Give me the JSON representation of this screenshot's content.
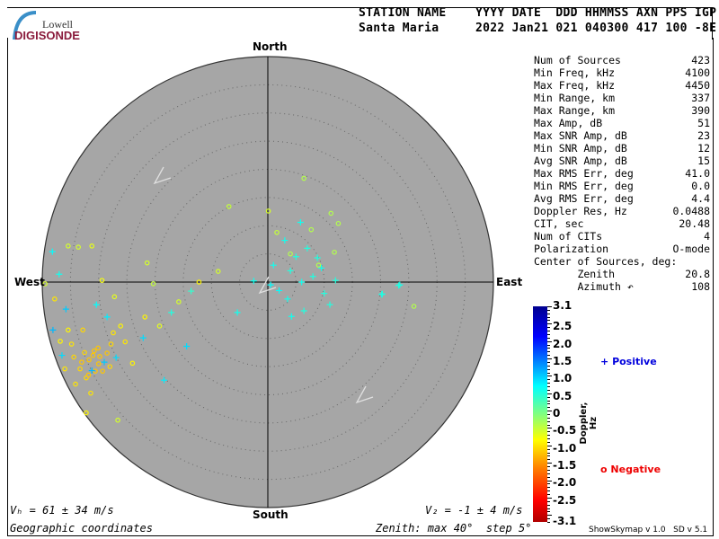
{
  "logo": {
    "line1": "Lowell",
    "line2": "DIGISONDE"
  },
  "header": {
    "labels": "STATION NAME    YYYY DATE  DDD HHMMSS AXN PPS IGP",
    "values": "Santa Maria     2022 Jan21 021 040300 417 100 -8E"
  },
  "stats": [
    {
      "label": "Num of Sources",
      "value": "423"
    },
    {
      "label": "Min Freq, kHz",
      "value": "4100"
    },
    {
      "label": "Max Freq, kHz",
      "value": "4450"
    },
    {
      "label": "Min Range, km",
      "value": "337"
    },
    {
      "label": "Max Range, km",
      "value": "390"
    },
    {
      "label": "Max Amp, dB",
      "value": "51"
    },
    {
      "label": "Max SNR Amp, dB",
      "value": "23"
    },
    {
      "label": "Min SNR Amp, dB",
      "value": "12"
    },
    {
      "label": "Avg SNR Amp, dB",
      "value": "15"
    },
    {
      "label": "Max RMS Err, deg",
      "value": "41.0"
    },
    {
      "label": "Min RMS Err, deg",
      "value": "0.0"
    },
    {
      "label": "Avg RMS Err, deg",
      "value": "4.4"
    },
    {
      "label": "Doppler Res, Hz",
      "value": "0.0488"
    },
    {
      "label": "CIT, sec",
      "value": "20.48"
    },
    {
      "label": "Num of CITs",
      "value": "4"
    },
    {
      "label": "Polarization",
      "value": "O-mode"
    },
    {
      "label": "Center of Sources, deg:",
      "value": ""
    },
    {
      "label": "       Zenith",
      "value": "20.8"
    },
    {
      "label": "       Azimuth ↶",
      "value": "108"
    }
  ],
  "footer": {
    "vh": "Vₕ = 61 ± 34 m/s",
    "vz": "V₂ = -1 ± 4 m/s",
    "coords": "Geographic coordinates",
    "zenith": "Zenith: max 40°  step 5°",
    "version": "ShowSkymap v 1.0   SD v 5.1"
  },
  "legend": {
    "positive": "Positive",
    "negative": "Negative",
    "positive_color": "#0000dd",
    "negative_color": "#ee0000"
  },
  "chart_data": {
    "type": "scatter",
    "projection": "polar sky map",
    "compass": {
      "north": "North",
      "south": "South",
      "east": "East",
      "west": "West"
    },
    "zenith_max_deg": 40,
    "zenith_step_deg": 5,
    "plot_background": "#a6a6a6",
    "colorbar": {
      "label": "Doppler, Hz",
      "range": [
        -3.1,
        3.1
      ],
      "ticks": [
        "3.1",
        "2.5",
        "2.0",
        "1.5",
        "1.0",
        "0.5",
        "0",
        "-0.5",
        "-1.0",
        "-1.5",
        "-2.0",
        "-2.5",
        "-3.1"
      ],
      "tick_values": [
        3.1,
        2.5,
        2.0,
        1.5,
        1.0,
        0.5,
        0,
        -0.5,
        -1.0,
        -1.5,
        -2.0,
        -2.5,
        -3.1
      ],
      "colormap": "jet (red negative to blue positive)"
    },
    "points_format": [
      "east_deg",
      "north_deg",
      "doppler_hz"
    ],
    "positive": [
      [
        3.0,
        7.4,
        0.7
      ],
      [
        5.8,
        10.6,
        0.7
      ],
      [
        8.8,
        4.3,
        0.6
      ],
      [
        23.4,
        -0.5,
        0.7
      ],
      [
        20.2,
        -2.2,
        0.7
      ],
      [
        4.2,
        -6.1,
        0.7
      ],
      [
        6.4,
        -5.1,
        0.6
      ],
      [
        -5.4,
        -5.4,
        0.7
      ],
      [
        -13.6,
        -1.6,
        0.5
      ],
      [
        -17.1,
        -5.4,
        0.6
      ],
      [
        -18.4,
        -17.4,
        0.9
      ],
      [
        -14.4,
        -11.4,
        1.0
      ],
      [
        -22.1,
        -9.9,
        1.0
      ],
      [
        -38.2,
        5.4,
        0.8
      ],
      [
        -37.0,
        1.4,
        0.7
      ],
      [
        -35.8,
        -4.8,
        1.1
      ],
      [
        20.3,
        -2.1,
        0.6
      ],
      [
        23.2,
        -0.6,
        0.6
      ],
      [
        1.0,
        3.0,
        0.7
      ],
      [
        4.0,
        2.0,
        0.6
      ],
      [
        6.0,
        0.0,
        0.7
      ],
      [
        2.0,
        -1.5,
        0.8
      ],
      [
        8.0,
        1.0,
        0.6
      ],
      [
        3.5,
        -3.0,
        0.7
      ],
      [
        10.0,
        -2.0,
        0.6
      ],
      [
        7.0,
        6.0,
        0.6
      ],
      [
        9.5,
        2.5,
        0.7
      ],
      [
        0.5,
        -0.5,
        0.8
      ],
      [
        5.0,
        4.5,
        0.6
      ],
      [
        11.0,
        -4.0,
        0.6
      ],
      [
        -2.5,
        0.2,
        0.7
      ],
      [
        12.0,
        0.3,
        0.6
      ],
      [
        -29.0,
        -14.2,
        1.1
      ],
      [
        -31.2,
        -15.7,
        1.2
      ],
      [
        -26.9,
        -13.4,
        1.0
      ],
      [
        -38.1,
        -8.5,
        1.2
      ],
      [
        -36.5,
        -13.0,
        1.0
      ],
      [
        -30.4,
        -4.0,
        0.8
      ],
      [
        -28.5,
        -6.2,
        0.9
      ]
    ],
    "negative": [
      [
        6.4,
        18.4,
        -0.3
      ],
      [
        -6.9,
        13.4,
        -0.4
      ],
      [
        0.1,
        12.6,
        -0.5
      ],
      [
        11.2,
        12.2,
        -0.3
      ],
      [
        12.5,
        10.4,
        -0.3
      ],
      [
        1.6,
        8.8,
        -0.4
      ],
      [
        7.7,
        9.3,
        -0.3
      ],
      [
        11.8,
        5.3,
        -0.3
      ],
      [
        -8.8,
        1.9,
        -0.5
      ],
      [
        -12.2,
        0.0,
        -0.8
      ],
      [
        -20.3,
        -0.3,
        -0.4
      ],
      [
        -21.4,
        3.4,
        -0.5
      ],
      [
        -27.2,
        -2.6,
        -0.6
      ],
      [
        -29.4,
        0.3,
        -0.7
      ],
      [
        -35.4,
        6.4,
        -0.5
      ],
      [
        -33.6,
        6.2,
        -0.5
      ],
      [
        -31.2,
        6.4,
        -0.6
      ],
      [
        -39.5,
        -0.3,
        -0.5
      ],
      [
        -21.8,
        -6.2,
        -0.8
      ],
      [
        -15.8,
        -3.5,
        -0.5
      ],
      [
        -19.2,
        -7.8,
        -0.6
      ],
      [
        -24.0,
        -14.4,
        -0.8
      ],
      [
        25.9,
        -4.3,
        -0.3
      ],
      [
        4.0,
        5.0,
        -0.3
      ],
      [
        9.0,
        3.0,
        -0.3
      ],
      [
        -31.7,
        -13.8,
        -1.1
      ],
      [
        -30.1,
        -11.7,
        -1.1
      ],
      [
        -33.3,
        -15.4,
        -1.0
      ],
      [
        -28.5,
        -12.6,
        -1.1
      ],
      [
        -34.4,
        -13.3,
        -1.0
      ],
      [
        -32.2,
        -17.0,
        -1.0
      ],
      [
        -30.6,
        -15.8,
        -1.1
      ],
      [
        -27.4,
        -9.0,
        -0.9
      ],
      [
        -26.1,
        -7.8,
        -0.8
      ],
      [
        -37.8,
        -3.0,
        -0.9
      ],
      [
        -35.4,
        -8.5,
        -0.8
      ],
      [
        -34.1,
        -18.1,
        -0.9
      ],
      [
        -31.4,
        -19.7,
        -0.9
      ],
      [
        -32.2,
        -23.2,
        -0.8
      ],
      [
        -26.6,
        -24.5,
        -0.5
      ],
      [
        -36.0,
        -15.4,
        -0.9
      ],
      [
        -32.8,
        -8.5,
        -1.0
      ],
      [
        -29.3,
        -15.8,
        -1.1
      ],
      [
        -25.3,
        -10.6,
        -0.9
      ],
      [
        -31.0,
        -13.0,
        -1.1
      ],
      [
        -30.0,
        -14.5,
        -1.1
      ],
      [
        -32.5,
        -12.5,
        -1.0
      ],
      [
        -29.8,
        -13.2,
        -1.1
      ],
      [
        -33.0,
        -14.2,
        -1.1
      ],
      [
        -28.0,
        -15.0,
        -1.0
      ],
      [
        -31.8,
        -16.5,
        -1.1
      ],
      [
        -30.8,
        -12.2,
        -1.1
      ],
      [
        -27.8,
        -11.0,
        -1.0
      ],
      [
        -34.8,
        -11.0,
        -0.9
      ],
      [
        -36.8,
        -10.5,
        -0.8
      ]
    ]
  }
}
